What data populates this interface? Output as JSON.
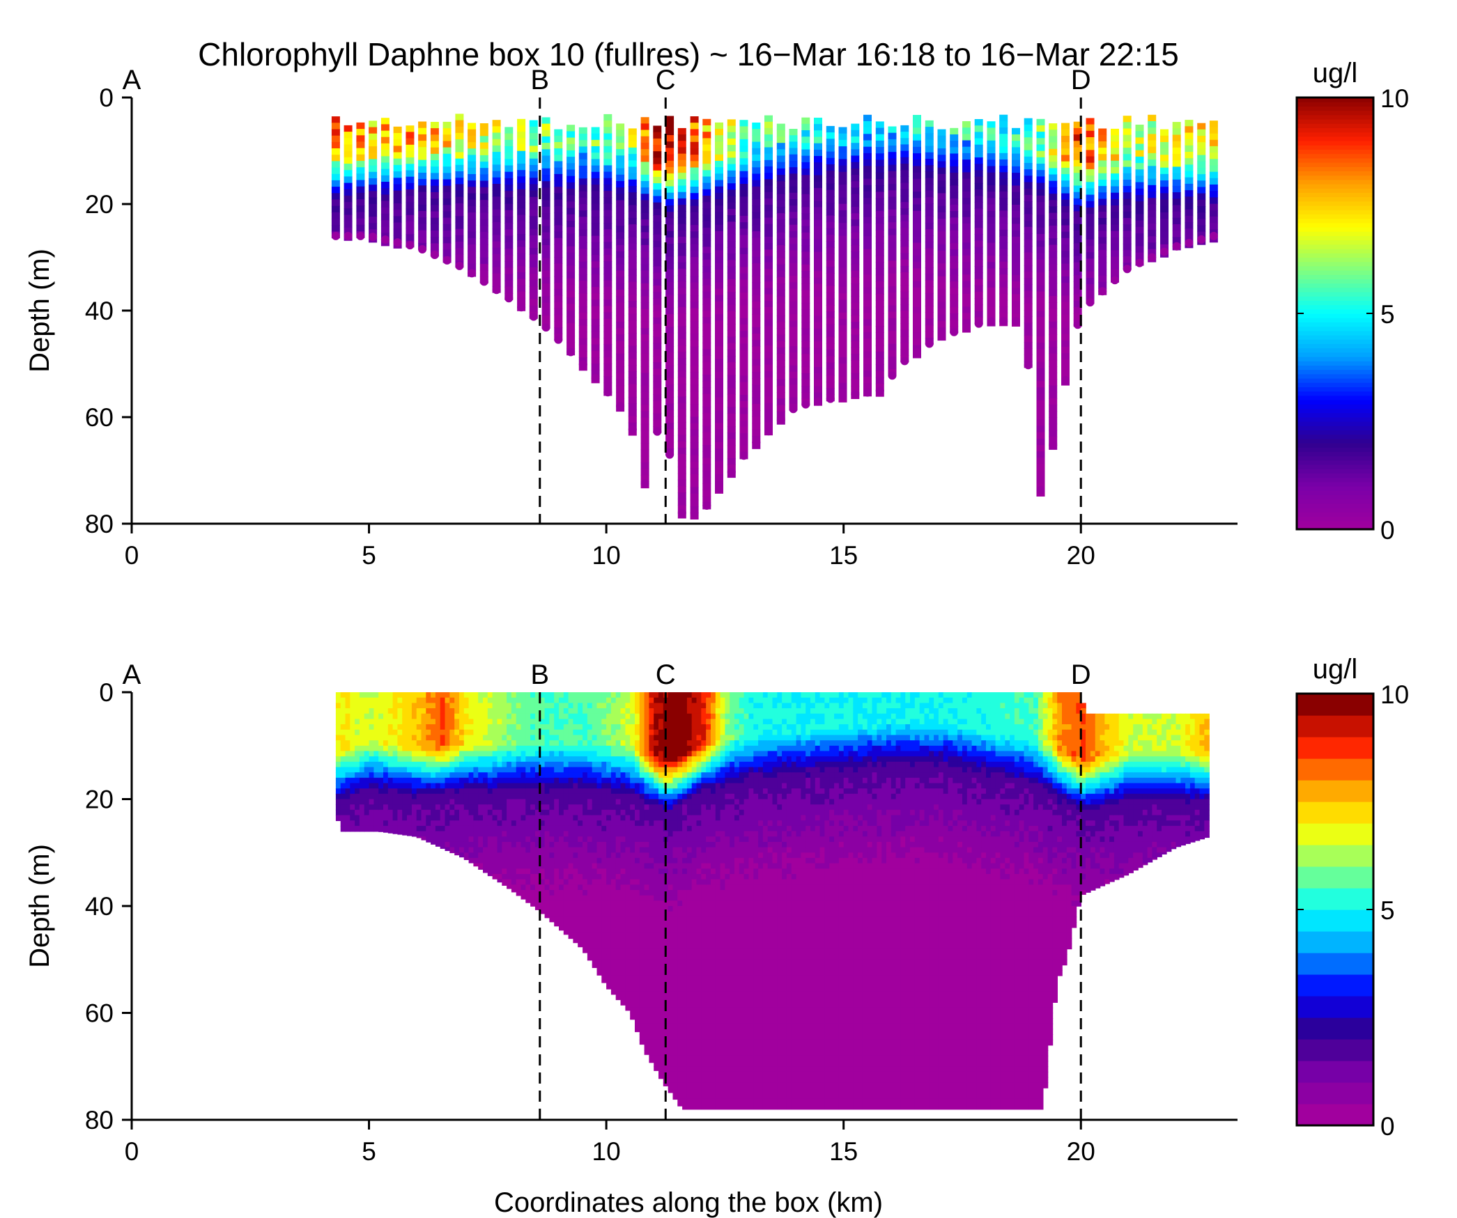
{
  "title": "Chlorophyll Daphne box 10 (fullres) ~ 16−Mar 16:18 to 16−Mar 22:15",
  "xlabel": "Coordinates along the box (km)",
  "colors": {
    "jet_stops": [
      "#a1009e",
      "#7a00a8",
      "#300090",
      "#0000ff",
      "#00a0ff",
      "#00ffff",
      "#80ff80",
      "#ffff00",
      "#ffa000",
      "#ff2000",
      "#8a0000"
    ]
  },
  "chart_data": [
    {
      "type": "scatter",
      "title": "Chlorophyll Daphne box 10 (fullres) ~ 16−Mar 16:18 to 16−Mar 22:15",
      "xlabel": "",
      "ylabel": "Depth (m)",
      "xlim": [
        0,
        23.3
      ],
      "ylim": [
        80,
        0
      ],
      "xticks": [
        "0",
        "5",
        "10",
        "15",
        "20"
      ],
      "yticks": [
        "0",
        "20",
        "40",
        "60",
        "80"
      ],
      "markers": [
        {
          "label": "A",
          "x": 0
        },
        {
          "label": "B",
          "x": 8.6
        },
        {
          "label": "C",
          "x": 11.25
        },
        {
          "label": "D",
          "x": 20.0
        }
      ],
      "colorbar": {
        "label": "ug/l",
        "min": 0,
        "max": 10,
        "ticks": [
          "0",
          "5",
          "10"
        ]
      },
      "profiles_x_range_km": [
        4.3,
        22.8
      ],
      "max_depth_profile": {
        "x": [
          4.3,
          5.0,
          6.0,
          7.0,
          8.0,
          8.6,
          9.5,
          10.5,
          10.8,
          11.2,
          11.5,
          12.0,
          13.0,
          14.0,
          15.0,
          15.8,
          16.2,
          17.0,
          18.0,
          18.8,
          19.2,
          19.5,
          20.0,
          21.0,
          22.0,
          22.8
        ],
        "depth": [
          26,
          26,
          28,
          32,
          38,
          42,
          50,
          60,
          73,
          58,
          78,
          78,
          66,
          58,
          56,
          55,
          50,
          45,
          42,
          42,
          78,
          60,
          40,
          32,
          28,
          26
        ]
      },
      "surface_chl_profile": {
        "x": [
          4.3,
          5.0,
          6.0,
          7.0,
          8.0,
          8.6,
          9.5,
          10.5,
          11.0,
          11.5,
          12.0,
          13.0,
          14.0,
          15.0,
          16.0,
          17.0,
          18.0,
          19.0,
          19.5,
          20.0,
          21.0,
          22.0,
          22.8
        ],
        "chl": [
          8.5,
          7.5,
          8.0,
          7.0,
          6.5,
          6.0,
          5.5,
          6.0,
          9.5,
          9.8,
          8.0,
          5.8,
          5.2,
          5.0,
          5.0,
          5.0,
          5.2,
          5.5,
          7.0,
          9.0,
          6.5,
          7.0,
          7.5
        ]
      },
      "mixed_layer_depth": {
        "x": [
          4.3,
          5.0,
          6.0,
          7.0,
          8.0,
          8.6,
          9.5,
          10.5,
          11.25,
          12.0,
          13.0,
          14.0,
          15.0,
          16.0,
          17.0,
          18.0,
          19.0,
          20.0,
          21.0,
          22.0,
          22.8
        ],
        "depth": [
          12,
          12,
          11,
          11,
          11,
          11,
          11,
          12,
          15,
          13,
          11,
          9,
          8,
          7,
          8,
          9,
          11,
          15,
          13,
          13,
          13
        ]
      }
    },
    {
      "type": "heatmap",
      "title": "",
      "xlabel": "Coordinates along the box (km)",
      "ylabel": "Depth (m)",
      "xlim": [
        0,
        23.3
      ],
      "ylim": [
        80,
        0
      ],
      "xticks": [
        "0",
        "5",
        "10",
        "15",
        "20"
      ],
      "yticks": [
        "0",
        "20",
        "40",
        "60",
        "80"
      ],
      "markers": [
        {
          "label": "A",
          "x": 0
        },
        {
          "label": "B",
          "x": 8.6
        },
        {
          "label": "C",
          "x": 11.25
        },
        {
          "label": "D",
          "x": 20.0
        }
      ],
      "colorbar": {
        "label": "ug/l",
        "min": 0,
        "max": 10,
        "ticks": [
          "0",
          "5",
          "10"
        ],
        "levels": 20
      },
      "data_mask_bottom": {
        "x": [
          4.3,
          4.4,
          5.2,
          6.0,
          7.0,
          8.0,
          8.6,
          9.5,
          10.0,
          10.5,
          10.8,
          11.2,
          11.6,
          19.2,
          19.5,
          19.7,
          20.0,
          21.0,
          22.0,
          22.7
        ],
        "depth": [
          22,
          26,
          26,
          27,
          31,
          37,
          41,
          48,
          55,
          60,
          67,
          73,
          78,
          78,
          54,
          50,
          38,
          34,
          29,
          27
        ]
      },
      "data_mask_top": {
        "x": [
          4.3,
          20.0,
          20.1,
          22.8
        ],
        "depth": [
          0,
          0,
          4,
          4
        ]
      },
      "surface_chl_profile": {
        "x": [
          4.3,
          5.0,
          6.0,
          6.5,
          7.0,
          8.0,
          8.6,
          9.5,
          10.5,
          11.0,
          11.5,
          12.0,
          12.5,
          13.0,
          14.0,
          15.0,
          16.0,
          17.0,
          18.0,
          19.0,
          19.5,
          20.0,
          21.0,
          22.0,
          22.8
        ],
        "chl": [
          7.0,
          6.5,
          7.5,
          8.5,
          7.0,
          6.0,
          5.5,
          5.5,
          6.5,
          9.5,
          10.0,
          9.0,
          6.0,
          5.2,
          5.0,
          5.0,
          5.0,
          5.0,
          5.2,
          5.5,
          8.0,
          8.5,
          6.5,
          6.5,
          8.0
        ]
      },
      "mixed_layer_depth": {
        "x": [
          4.3,
          5.0,
          6.0,
          7.0,
          8.0,
          8.6,
          9.5,
          10.5,
          11.25,
          12.0,
          13.0,
          14.0,
          15.0,
          16.0,
          17.0,
          18.0,
          19.0,
          20.0,
          21.0,
          22.0,
          22.8
        ],
        "depth": [
          14,
          12,
          13,
          12,
          12,
          12,
          12,
          13,
          16,
          12,
          10,
          9,
          8,
          7,
          7,
          9,
          11,
          16,
          14,
          14,
          14
        ]
      }
    }
  ]
}
